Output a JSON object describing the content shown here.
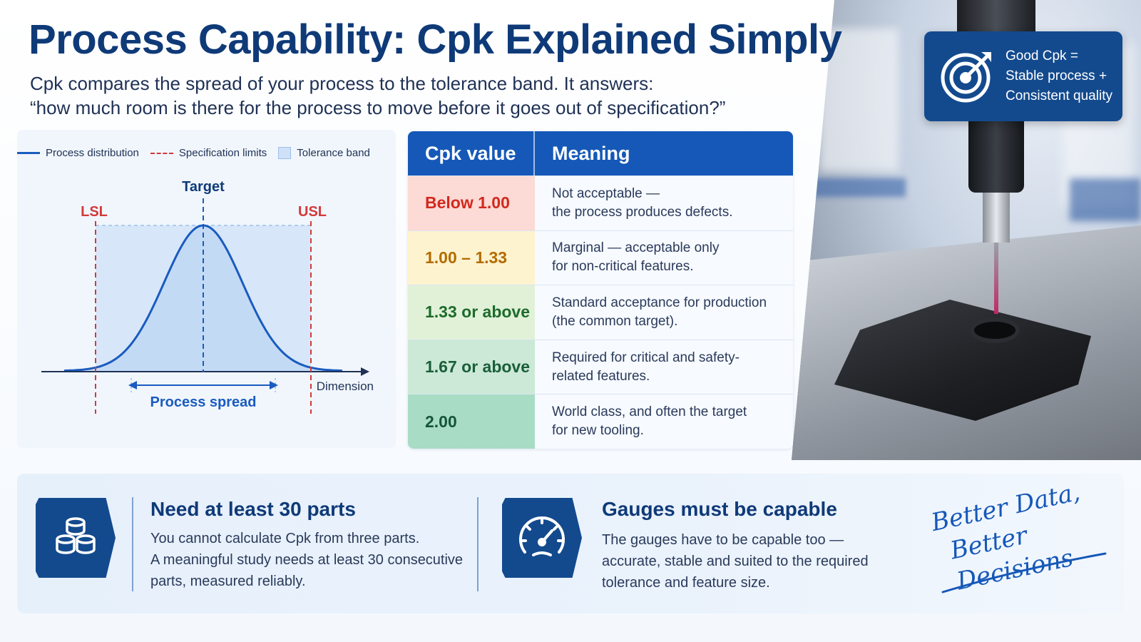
{
  "title": "Process Capability: Cpk Explained Simply",
  "subtitle_lines": [
    "Cpk compares the spread of your process to the tolerance band. It answers:",
    "“how much room is there for the process to move before it goes out of specification?”"
  ],
  "legend": {
    "distribution": "Process distribution",
    "spec_limits": "Specification limits",
    "tolerance": "Tolerance band"
  },
  "chart": {
    "target_label": "Target",
    "lsl_label": "LSL",
    "usl_label": "USL",
    "spread_label": "Process spread",
    "axis_label": "Dimension"
  },
  "colors": {
    "curve": "#1a5bbf",
    "spec": "#d23a3a",
    "tolerance_fill": "#d7e7f9",
    "header": "#1558b8"
  },
  "table": {
    "header": {
      "value": "Cpk value",
      "meaning": "Meaning"
    },
    "rows": [
      {
        "value": "Below 1.00",
        "meaning_1": "Not acceptable —",
        "meaning_2": "the process produces defects.",
        "bg": "#fcdad5",
        "color": "#d2281e"
      },
      {
        "value": "1.00 – 1.33",
        "meaning_1": "Marginal — acceptable only",
        "meaning_2": "for non-critical features.",
        "bg": "#fdf3cf",
        "color": "#b36b00"
      },
      {
        "value": "1.33 or above",
        "meaning_1": "Standard acceptance for production",
        "meaning_2": "(the common target).",
        "bg": "#e1f1d8",
        "color": "#1d6b2c"
      },
      {
        "value": "1.67 or above",
        "meaning_1": "Required for critical and safety-",
        "meaning_2": "related features.",
        "bg": "#cbe9d6",
        "color": "#1a5e3a"
      },
      {
        "value": "2.00",
        "meaning_1": "World class, and often the target",
        "meaning_2": "for new tooling.",
        "bg": "#a9dcc5",
        "color": "#14553a"
      }
    ]
  },
  "badge": {
    "icon": "target-arrow-icon",
    "line_1": "Good Cpk =",
    "line_2": "Stable process +",
    "line_3": "Consistent quality"
  },
  "bottom": {
    "card_1": {
      "icon": "parts-stack-icon",
      "title": "Need at least 30 parts",
      "line_1": "You cannot calculate Cpk from three parts.",
      "line_2": "A meaningful study needs at least 30 consecutive",
      "line_3": "parts, measured reliably."
    },
    "card_2": {
      "icon": "gauge-icon",
      "title": "Gauges must be capable",
      "line_1": "The gauges have to be capable too —",
      "line_2": "accurate, stable and suited to the required",
      "line_3": "tolerance and feature size."
    },
    "slogan_1": "Better Data,",
    "slogan_2": "Better Decisions"
  }
}
